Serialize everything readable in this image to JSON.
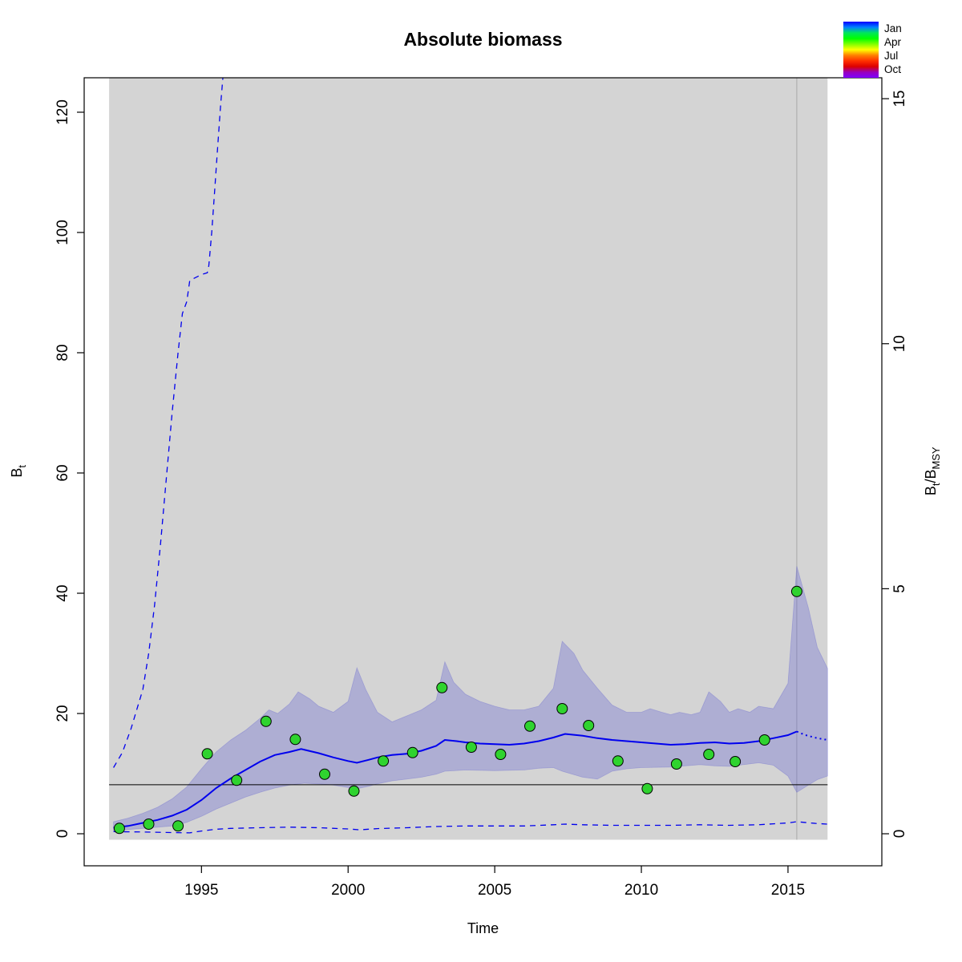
{
  "title": "Absolute biomass",
  "axes": {
    "x_label": "Time",
    "y_left": {
      "base": "B",
      "sub": "t"
    },
    "y_right": {
      "base1": "B",
      "sub1": "t",
      "sep": "/",
      "base2": "B",
      "sub2": "MSY"
    }
  },
  "legend": {
    "labels": [
      "Jan",
      "Apr",
      "Jul",
      "Oct"
    ],
    "gradient_stops": [
      "#0000FF",
      "#0080FF",
      "#00E65C",
      "#00FF00",
      "#80FF00",
      "#FFFF00",
      "#FF8000",
      "#FF3000",
      "#DD0000",
      "#9900BB",
      "#7F00FF"
    ]
  },
  "colors": {
    "estimate_line": "#0000EE",
    "ci_dashed": "#0000EE",
    "ci_band_fill": "#6060D0",
    "observation_fill": "#2FD32F",
    "background_shade": "#D4D4D4",
    "bmsy_line": "#000000",
    "vline": "#A8A8A8",
    "axis": "#000000"
  },
  "chart_data": {
    "type": "line",
    "title": "Absolute biomass",
    "xlabel": "Time",
    "ylabel_left": "Bt",
    "ylabel_right": "Bt/BMSY",
    "xlim": [
      1991.0,
      2018.2
    ],
    "ylim": [
      -5.33,
      125.73
    ],
    "x_ticks": [
      1995,
      2000,
      2005,
      2010,
      2015
    ],
    "y_ticks_left": [
      0,
      20,
      40,
      60,
      80,
      100,
      120
    ],
    "y_ticks_right": {
      "values": [
        0,
        5,
        10,
        15
      ],
      "bt_per_unit": 8.15
    },
    "bmsy_line": 8.15,
    "vline_time": 2015.3,
    "data_region": {
      "t0": 1991.85,
      "t1": 2016.35,
      "v0": -1.0
    },
    "legend_position": "top-right",
    "grid": false,
    "series_estimate": [
      [
        1992.0,
        1.0
      ],
      [
        1992.5,
        1.3
      ],
      [
        1993.0,
        1.8
      ],
      [
        1993.5,
        2.3
      ],
      [
        1994.0,
        3.0
      ],
      [
        1994.5,
        4.0
      ],
      [
        1995.0,
        5.6
      ],
      [
        1995.5,
        7.6
      ],
      [
        1996.0,
        9.2
      ],
      [
        1996.5,
        10.6
      ],
      [
        1997.0,
        12.0
      ],
      [
        1997.5,
        13.1
      ],
      [
        1998.0,
        13.6
      ],
      [
        1998.4,
        14.1
      ],
      [
        1999.0,
        13.4
      ],
      [
        1999.5,
        12.7
      ],
      [
        2000.0,
        12.1
      ],
      [
        2000.3,
        11.8
      ],
      [
        2000.7,
        12.3
      ],
      [
        2001.0,
        12.7
      ],
      [
        2001.5,
        13.1
      ],
      [
        2002.0,
        13.3
      ],
      [
        2002.5,
        13.8
      ],
      [
        2003.0,
        14.6
      ],
      [
        2003.3,
        15.6
      ],
      [
        2003.7,
        15.4
      ],
      [
        2004.0,
        15.2
      ],
      [
        2004.5,
        15.0
      ],
      [
        2005.0,
        14.9
      ],
      [
        2005.5,
        14.8
      ],
      [
        2006.0,
        15.0
      ],
      [
        2006.5,
        15.4
      ],
      [
        2007.0,
        16.0
      ],
      [
        2007.4,
        16.6
      ],
      [
        2008.0,
        16.3
      ],
      [
        2008.5,
        15.9
      ],
      [
        2009.0,
        15.6
      ],
      [
        2009.5,
        15.4
      ],
      [
        2010.0,
        15.2
      ],
      [
        2010.5,
        15.0
      ],
      [
        2011.0,
        14.8
      ],
      [
        2011.5,
        14.9
      ],
      [
        2012.0,
        15.1
      ],
      [
        2012.5,
        15.2
      ],
      [
        2013.0,
        15.0
      ],
      [
        2013.5,
        15.1
      ],
      [
        2014.0,
        15.4
      ],
      [
        2014.5,
        15.9
      ],
      [
        2015.0,
        16.4
      ],
      [
        2015.3,
        17.0
      ]
    ],
    "series_forecast": [
      [
        2015.3,
        17.0
      ],
      [
        2015.6,
        16.4
      ],
      [
        2016.0,
        15.9
      ],
      [
        2016.35,
        15.6
      ]
    ],
    "series_band": {
      "upper": [
        [
          1992.0,
          2.0
        ],
        [
          1992.5,
          2.6
        ],
        [
          1993.0,
          3.4
        ],
        [
          1993.5,
          4.4
        ],
        [
          1994.0,
          5.8
        ],
        [
          1994.5,
          7.8
        ],
        [
          1995.0,
          10.8
        ],
        [
          1995.5,
          13.6
        ],
        [
          1996.0,
          15.6
        ],
        [
          1996.5,
          17.2
        ],
        [
          1997.0,
          19.2
        ],
        [
          1997.3,
          20.6
        ],
        [
          1997.6,
          20.0
        ],
        [
          1998.0,
          21.6
        ],
        [
          1998.3,
          23.6
        ],
        [
          1998.7,
          22.4
        ],
        [
          1999.0,
          21.2
        ],
        [
          1999.5,
          20.2
        ],
        [
          2000.0,
          22.0
        ],
        [
          2000.3,
          27.6
        ],
        [
          2000.6,
          24.0
        ],
        [
          2001.0,
          20.2
        ],
        [
          2001.5,
          18.6
        ],
        [
          2002.0,
          19.6
        ],
        [
          2002.5,
          20.6
        ],
        [
          2003.0,
          22.2
        ],
        [
          2003.3,
          28.6
        ],
        [
          2003.6,
          25.2
        ],
        [
          2004.0,
          23.2
        ],
        [
          2004.5,
          22.0
        ],
        [
          2005.0,
          21.2
        ],
        [
          2005.5,
          20.6
        ],
        [
          2006.0,
          20.6
        ],
        [
          2006.5,
          21.2
        ],
        [
          2007.0,
          24.2
        ],
        [
          2007.3,
          32.0
        ],
        [
          2007.7,
          30.0
        ],
        [
          2008.0,
          27.2
        ],
        [
          2008.5,
          24.2
        ],
        [
          2009.0,
          21.4
        ],
        [
          2009.5,
          20.2
        ],
        [
          2010.0,
          20.2
        ],
        [
          2010.3,
          20.8
        ],
        [
          2010.7,
          20.2
        ],
        [
          2011.0,
          19.8
        ],
        [
          2011.3,
          20.2
        ],
        [
          2011.7,
          19.8
        ],
        [
          2012.0,
          20.2
        ],
        [
          2012.3,
          23.6
        ],
        [
          2012.7,
          22.0
        ],
        [
          2013.0,
          20.2
        ],
        [
          2013.3,
          20.8
        ],
        [
          2013.7,
          20.2
        ],
        [
          2014.0,
          21.2
        ],
        [
          2014.5,
          20.8
        ],
        [
          2015.0,
          25.0
        ],
        [
          2015.3,
          44.5
        ],
        [
          2015.7,
          37.5
        ],
        [
          2016.0,
          31.0
        ],
        [
          2016.35,
          27.5
        ]
      ],
      "lower": [
        [
          1992.0,
          0.5
        ],
        [
          1993.0,
          0.9
        ],
        [
          1994.0,
          1.3
        ],
        [
          1994.5,
          1.9
        ],
        [
          1995.0,
          2.9
        ],
        [
          1995.5,
          4.1
        ],
        [
          1996.0,
          5.1
        ],
        [
          1996.5,
          6.1
        ],
        [
          1997.0,
          6.9
        ],
        [
          1997.5,
          7.6
        ],
        [
          1998.0,
          8.1
        ],
        [
          1998.5,
          8.4
        ],
        [
          1999.0,
          8.3
        ],
        [
          1999.5,
          8.1
        ],
        [
          2000.0,
          7.7
        ],
        [
          2000.3,
          7.5
        ],
        [
          2000.7,
          7.9
        ],
        [
          2001.0,
          8.3
        ],
        [
          2001.5,
          8.8
        ],
        [
          2002.0,
          9.1
        ],
        [
          2002.5,
          9.4
        ],
        [
          2003.0,
          9.9
        ],
        [
          2003.3,
          10.4
        ],
        [
          2004.0,
          10.6
        ],
        [
          2005.0,
          10.5
        ],
        [
          2006.0,
          10.6
        ],
        [
          2006.5,
          10.9
        ],
        [
          2007.0,
          11.0
        ],
        [
          2007.3,
          10.4
        ],
        [
          2008.0,
          9.4
        ],
        [
          2008.5,
          9.1
        ],
        [
          2009.0,
          10.4
        ],
        [
          2009.5,
          10.8
        ],
        [
          2010.0,
          11.0
        ],
        [
          2011.0,
          11.1
        ],
        [
          2012.0,
          11.5
        ],
        [
          2012.5,
          11.3
        ],
        [
          2013.0,
          11.2
        ],
        [
          2014.0,
          11.8
        ],
        [
          2014.5,
          11.4
        ],
        [
          2015.0,
          9.6
        ],
        [
          2015.3,
          6.9
        ],
        [
          2015.7,
          8.1
        ],
        [
          2016.0,
          9.0
        ],
        [
          2016.35,
          9.6
        ]
      ]
    },
    "series_ci_upper": [
      [
        1992.0,
        11.0
      ],
      [
        1992.3,
        13.5
      ],
      [
        1992.6,
        17.5
      ],
      [
        1993.0,
        24.0
      ],
      [
        1993.2,
        30.0
      ],
      [
        1993.4,
        38.0
      ],
      [
        1993.6,
        48.0
      ],
      [
        1993.8,
        59.0
      ],
      [
        1994.0,
        70.0
      ],
      [
        1994.2,
        80.0
      ],
      [
        1994.35,
        86.5
      ],
      [
        1994.5,
        88.5
      ],
      [
        1994.6,
        92.0
      ],
      [
        1994.8,
        92.5
      ],
      [
        1995.0,
        93.0
      ],
      [
        1995.2,
        93.3
      ],
      [
        1995.25,
        94.5
      ],
      [
        1995.35,
        100.0
      ],
      [
        1995.45,
        107.0
      ],
      [
        1995.55,
        114.0
      ],
      [
        1995.65,
        121.0
      ],
      [
        1995.73,
        125.7
      ]
    ],
    "series_ci_lower": [
      [
        1992.0,
        0.35
      ],
      [
        1993.0,
        0.3
      ],
      [
        1994.0,
        0.2
      ],
      [
        1994.6,
        0.15
      ],
      [
        1995.0,
        0.45
      ],
      [
        1995.5,
        0.75
      ],
      [
        1996.0,
        0.9
      ],
      [
        1997.0,
        1.0
      ],
      [
        1998.0,
        1.1
      ],
      [
        1999.0,
        1.0
      ],
      [
        2000.0,
        0.8
      ],
      [
        2000.4,
        0.65
      ],
      [
        2001.0,
        0.85
      ],
      [
        2002.0,
        1.0
      ],
      [
        2003.0,
        1.2
      ],
      [
        2004.0,
        1.3
      ],
      [
        2005.0,
        1.3
      ],
      [
        2006.0,
        1.3
      ],
      [
        2007.0,
        1.5
      ],
      [
        2007.4,
        1.6
      ],
      [
        2008.0,
        1.5
      ],
      [
        2009.0,
        1.4
      ],
      [
        2010.0,
        1.4
      ],
      [
        2011.0,
        1.4
      ],
      [
        2012.0,
        1.5
      ],
      [
        2013.0,
        1.4
      ],
      [
        2014.0,
        1.5
      ],
      [
        2015.0,
        1.8
      ],
      [
        2015.3,
        2.0
      ],
      [
        2016.0,
        1.7
      ],
      [
        2016.35,
        1.6
      ]
    ],
    "observations": [
      [
        1992.2,
        0.9
      ],
      [
        1993.2,
        1.6
      ],
      [
        1994.2,
        1.3
      ],
      [
        1995.2,
        13.3
      ],
      [
        1996.2,
        8.9
      ],
      [
        1997.2,
        18.7
      ],
      [
        1998.2,
        15.7
      ],
      [
        1999.2,
        9.9
      ],
      [
        2000.2,
        7.1
      ],
      [
        2001.2,
        12.1
      ],
      [
        2002.2,
        13.5
      ],
      [
        2003.2,
        24.3
      ],
      [
        2004.2,
        14.4
      ],
      [
        2005.2,
        13.2
      ],
      [
        2006.2,
        17.9
      ],
      [
        2007.3,
        20.8
      ],
      [
        2008.2,
        18.0
      ],
      [
        2009.2,
        12.1
      ],
      [
        2010.2,
        7.5
      ],
      [
        2011.2,
        11.6
      ],
      [
        2012.3,
        13.2
      ],
      [
        2013.2,
        12.0
      ],
      [
        2014.2,
        15.6
      ],
      [
        2015.3,
        40.3
      ]
    ]
  }
}
